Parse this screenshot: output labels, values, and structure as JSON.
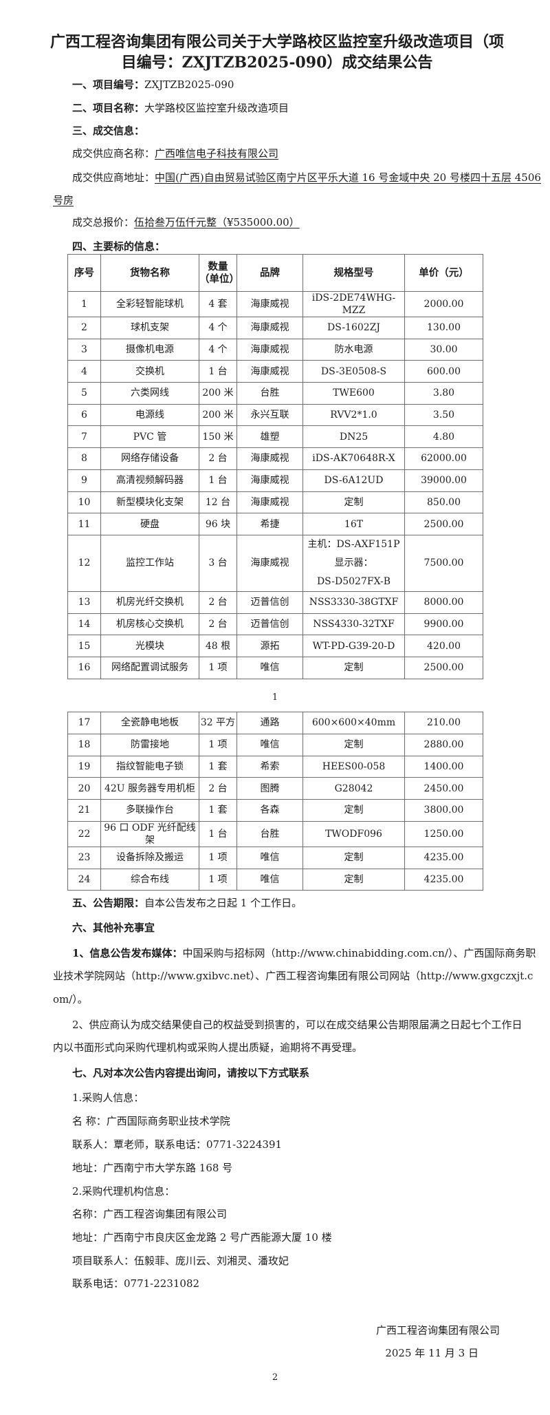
{
  "title": "广西工程咨询集团有限公司关于大学路校区监控室升级改造项目（项目编号：ZXJTZB2025-090）成交结果公告",
  "s1": {
    "label": "一、项目编号：",
    "value": "ZXJTZB2025-090"
  },
  "s2": {
    "label": "二、项目名称：",
    "value": "大学路校区监控室升级改造项目"
  },
  "s3": {
    "label": "三、成交信息："
  },
  "supplier_name": {
    "label": "成交供应商名称：",
    "value": "广西唯信电子科技有限公司"
  },
  "supplier_addr": {
    "label": "成交供应商地址：",
    "value_line1": "中国(广西)自由贸易试验区南宁片区平乐大道 16 号金域中央 20 号楼四十五层 4506",
    "value_line2": "号房"
  },
  "price": {
    "label": "成交总报价：",
    "value": "伍拾叁万伍仟元整（¥535000.00）"
  },
  "s4": {
    "label": "四、主要标的信息："
  },
  "table": {
    "headers": [
      "序号",
      "货物名称",
      "数量",
      "（单位）",
      "品牌",
      "规格型号",
      "单价（元）"
    ],
    "rows": [
      [
        "1",
        "全彩轻智能球机",
        "4 套",
        "海康威视",
        "iDS-2DE74WHG-MZZ",
        "2000.00"
      ],
      [
        "2",
        "球机支架",
        "4 个",
        "海康威视",
        "DS-1602ZJ",
        "130.00"
      ],
      [
        "3",
        "摄像机电源",
        "4 个",
        "海康威视",
        "防水电源",
        "30.00"
      ],
      [
        "4",
        "交换机",
        "1 台",
        "海康威视",
        "DS-3E0508-S",
        "600.00"
      ],
      [
        "5",
        "六类网线",
        "200 米",
        "台胜",
        "TWE600",
        "3.80"
      ],
      [
        "6",
        "电源线",
        "200 米",
        "永兴互联",
        "RVV2*1.0",
        "3.50"
      ],
      [
        "7",
        "PVC 管",
        "150 米",
        "雄塑",
        "DN25",
        "4.80"
      ],
      [
        "8",
        "网络存储设备",
        "2 台",
        "海康威视",
        "iDS-AK70648R-X",
        "62000.00"
      ],
      [
        "9",
        "高清视频解码器",
        "1 台",
        "海康威视",
        "DS-6A12UD",
        "39000.00"
      ],
      [
        "10",
        "新型模块化支架",
        "12 台",
        "海康威视",
        "定制",
        "850.00"
      ],
      [
        "11",
        "硬盘",
        "96 块",
        "希捷",
        "16T",
        "2500.00"
      ],
      [
        "12",
        "监控工作站",
        "3 台",
        "海康威视",
        "主机：DS-AXF151P",
        "7500.00"
      ],
      [
        "13",
        "机房光纤交换机",
        "2 台",
        "迈普信创",
        "NSS3330-38GTXF",
        "8000.00"
      ],
      [
        "14",
        "机房核心交换机",
        "2 台",
        "迈普信创",
        "NSS4330-32TXF",
        "9900.00"
      ],
      [
        "15",
        "光模块",
        "48 根",
        "源拓",
        "WT-PD-G39-20-D",
        "420.00"
      ],
      [
        "16",
        "网络配置调试服务",
        "1 项",
        "唯信",
        "定制",
        "2500.00"
      ]
    ],
    "row12_spec_extra": [
      "显示器：",
      "DS-D5027FX-B"
    ],
    "rows2": [
      [
        "17",
        "全瓷静电地板",
        "32 平方",
        "通路",
        "600×600×40mm",
        "210.00"
      ],
      [
        "18",
        "防雷接地",
        "1 项",
        "唯信",
        "定制",
        "2880.00"
      ],
      [
        "19",
        "指纹智能电子锁",
        "1 套",
        "希索",
        "HEES00-058",
        "1400.00"
      ],
      [
        "20",
        "42U 服务器专用机柜",
        "2 台",
        "图腾",
        "G28042",
        "2450.00"
      ],
      [
        "21",
        "多联操作台",
        "1 套",
        "各森",
        "定制",
        "3800.00"
      ],
      [
        "22",
        "96 口 ODF 光纤配线架",
        "1 台",
        "台胜",
        "TWODF096",
        "1250.00"
      ],
      [
        "23",
        "设备拆除及搬运",
        "1 项",
        "唯信",
        "定制",
        "4235.00"
      ],
      [
        "24",
        "综合布线",
        "1 项",
        "唯信",
        "定制",
        "4235.00"
      ]
    ]
  },
  "page1": "1",
  "s5": {
    "label": "五、公告期限：",
    "value": "自本公告发布之日起 1 个工作日。"
  },
  "s6": {
    "label": "六、其他补充事宜"
  },
  "s6_1": {
    "label": "1、信息公告发布媒体：",
    "line1": "中国采购与招标网（http://www.chinabidding.com.cn/）、广西国际商务职",
    "line2": "业技术学院网站（http://www.gxibvc.net）、广西工程咨询集团有限公司网站（http://www.gxgczxjt.c",
    "line3": "om/）。"
  },
  "s6_2": {
    "line1": "2、供应商认为成交结果使自己的权益受到损害的，可以在成交结果公告期限届满之日起七个工作日",
    "line2": "内以书面形式向采购代理机构或采购人提出质疑，逾期将不再受理。"
  },
  "s7": {
    "label": "七、凡对本次公告内容提出询问，请按以下方式联系"
  },
  "buyer": {
    "heading": "1.采购人信息：",
    "name": "名 称：广西国际商务职业技术学院",
    "contact": "联系人：覃老师，联系电话：0771-3224391",
    "address": "地址：广西南宁市大学东路 168 号"
  },
  "agency": {
    "heading": "2.采购代理机构信息：",
    "name": "名称：广西工程咨询集团有限公司",
    "address": "地址：广西南宁市良庆区金龙路 2 号广西能源大厦 10 楼",
    "contacts": "项目联系人：伍毅菲、庞川云、刘湘灵、潘玫妃",
    "phone": "联系电话：0771-2231082"
  },
  "signature": {
    "org": "广西工程咨询集团有限公司",
    "date": "2025 年 11 月 3 日"
  },
  "page2": "2"
}
